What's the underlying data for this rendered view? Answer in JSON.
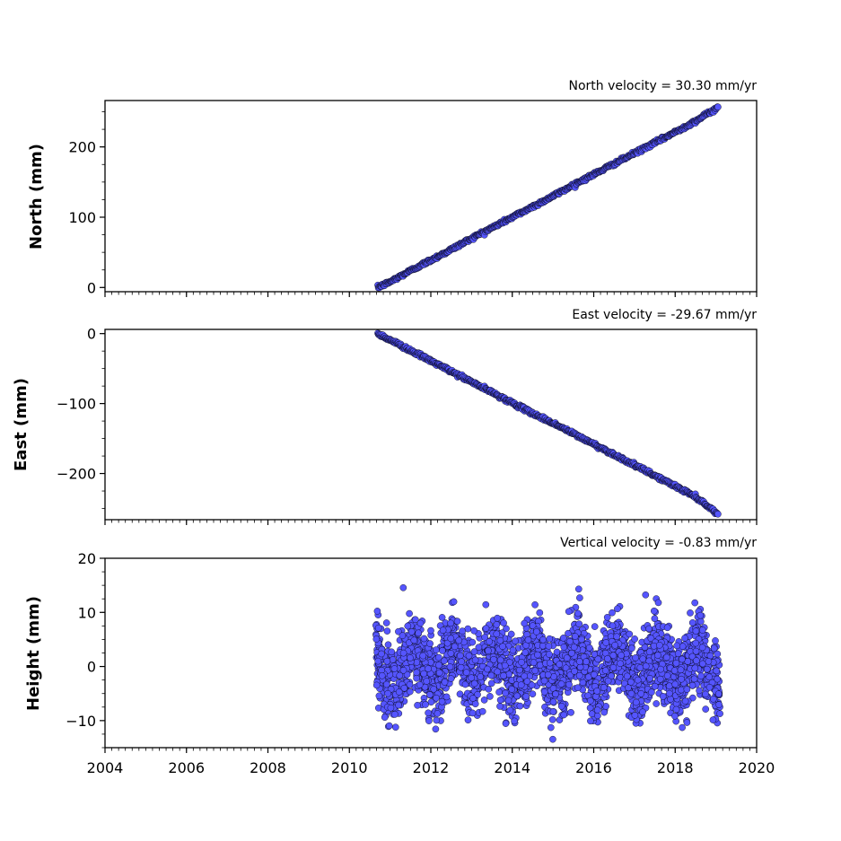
{
  "chart_data": [
    {
      "type": "scatter",
      "title": "North velocity = 30.30 mm/yr",
      "ylabel": "North (mm)",
      "xlim": [
        2004,
        2020
      ],
      "ylim": [
        -6,
        266
      ],
      "yticks": [
        0,
        100,
        200
      ],
      "yticks_minor": [
        -5,
        5,
        10,
        15
      ],
      "xticks": [],
      "marker_color": "#5555ff",
      "edge_color": "#000000",
      "series": [
        {
          "x": [
            2010.7,
            2011.0,
            2011.5,
            2012.0,
            2012.5,
            2013.0,
            2013.5,
            2014.0,
            2014.5,
            2015.0,
            2015.5,
            2016.0,
            2016.5,
            2017.0,
            2017.5,
            2018.0,
            2018.5,
            2019.05
          ],
          "y": [
            0,
            8,
            24,
            39,
            54,
            70,
            85,
            100,
            115,
            130,
            146,
            161,
            176,
            191,
            206,
            221,
            237,
            256
          ]
        }
      ]
    },
    {
      "type": "scatter",
      "title": "East velocity = -29.67 mm/yr",
      "ylabel": "East (mm)",
      "xlim": [
        2004,
        2020
      ],
      "ylim": [
        -266,
        6
      ],
      "yticks": [
        0,
        -100,
        -200
      ],
      "xticks": [],
      "marker_color": "#5555ff",
      "edge_color": "#000000",
      "series": [
        {
          "x": [
            2010.7,
            2011.0,
            2011.5,
            2012.0,
            2012.5,
            2013.0,
            2013.5,
            2014.0,
            2014.5,
            2015.0,
            2015.5,
            2016.0,
            2016.5,
            2017.0,
            2017.5,
            2018.0,
            2018.5,
            2019.05
          ],
          "y": [
            0,
            -9,
            -24,
            -39,
            -54,
            -69,
            -84,
            -99,
            -114,
            -128,
            -143,
            -158,
            -173,
            -188,
            -203,
            -218,
            -233,
            -258
          ]
        }
      ]
    },
    {
      "type": "scatter",
      "title": "Vertical velocity = -0.83 mm/yr",
      "ylabel": "Height (mm)",
      "xlim": [
        2004,
        2020
      ],
      "ylim": [
        -15,
        20
      ],
      "yticks": [
        -10,
        0,
        10,
        20
      ],
      "xticks": [
        2004,
        2006,
        2008,
        2010,
        2012,
        2014,
        2016,
        2018,
        2020
      ],
      "xtick_labels": [
        "2004",
        "2006",
        "2008",
        "2010",
        "2012",
        "2014",
        "2016",
        "2018",
        "2020"
      ],
      "marker_color": "#5555ff",
      "edge_color": "#000000",
      "series": [
        {
          "x_range": [
            2010.65,
            2019.1
          ],
          "y_spread": [
            -14.5,
            17
          ],
          "typical_band": [
            -8,
            8
          ]
        }
      ]
    }
  ]
}
